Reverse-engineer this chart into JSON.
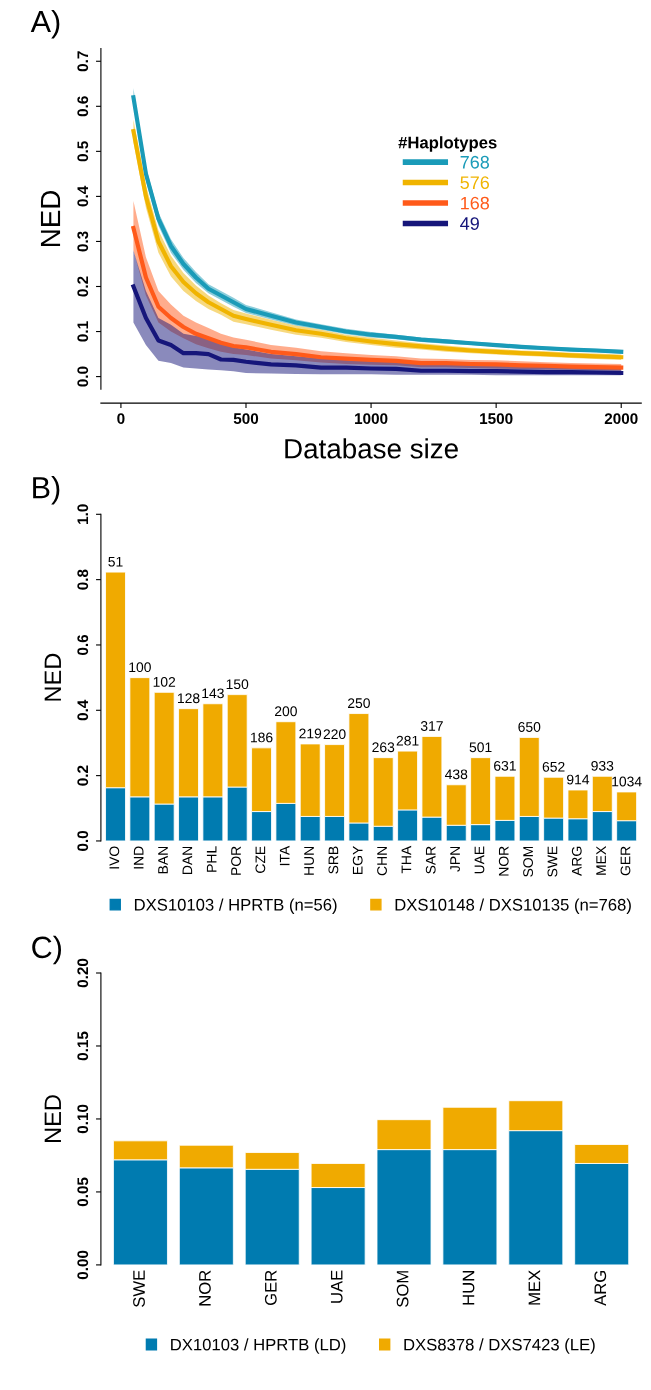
{
  "chart_data": [
    {
      "type": "line",
      "title": "A)",
      "xlabel": "Database size",
      "ylabel": "NED",
      "legend": "center right",
      "legend_title": "#Haplotypes",
      "x": [
        50,
        100,
        150,
        200,
        250,
        300,
        350,
        400,
        450,
        500,
        600,
        700,
        800,
        900,
        1000,
        1100,
        1200,
        1300,
        1400,
        1500,
        1600,
        1700,
        1800,
        1900,
        2000
      ],
      "xlim": [
        -80,
        2080
      ],
      "xticks": [
        0,
        500,
        1000,
        1500,
        2000
      ],
      "ylim": [
        -0.028,
        0.728
      ],
      "yticks": [
        {
          "value": 0,
          "label": "0.0"
        },
        0.1,
        0.2,
        0.3,
        0.4,
        0.5,
        0.6,
        0.7
      ],
      "series": [
        {
          "name": "768",
          "color": "#1a9bb8",
          "values": [
            0.62,
            0.45,
            0.35,
            0.29,
            0.25,
            0.22,
            0.195,
            0.18,
            0.165,
            0.15,
            0.135,
            0.12,
            0.11,
            0.1,
            0.093,
            0.088,
            0.082,
            0.078,
            0.074,
            0.07,
            0.066,
            0.063,
            0.06,
            0.058,
            0.055
          ],
          "lower": [
            0.6,
            0.435,
            0.335,
            0.275,
            0.237,
            0.208,
            0.185,
            0.17,
            0.155,
            0.141,
            0.127,
            0.113,
            0.104,
            0.094,
            0.087,
            0.083,
            0.077,
            0.073,
            0.07,
            0.066,
            0.062,
            0.059,
            0.056,
            0.054,
            0.051
          ],
          "upper": [
            0.64,
            0.465,
            0.365,
            0.305,
            0.263,
            0.232,
            0.205,
            0.19,
            0.175,
            0.159,
            0.143,
            0.127,
            0.116,
            0.106,
            0.099,
            0.093,
            0.087,
            0.083,
            0.078,
            0.074,
            0.07,
            0.067,
            0.064,
            0.062,
            0.059
          ]
        },
        {
          "name": "576",
          "color": "#f0b400",
          "values": [
            0.545,
            0.4,
            0.3,
            0.245,
            0.21,
            0.185,
            0.165,
            0.15,
            0.135,
            0.128,
            0.115,
            0.103,
            0.095,
            0.085,
            0.078,
            0.072,
            0.067,
            0.062,
            0.058,
            0.055,
            0.052,
            0.05,
            0.047,
            0.045,
            0.043
          ],
          "lower": [
            0.52,
            0.375,
            0.275,
            0.222,
            0.19,
            0.168,
            0.15,
            0.137,
            0.122,
            0.116,
            0.104,
            0.093,
            0.086,
            0.077,
            0.07,
            0.064,
            0.06,
            0.055,
            0.052,
            0.049,
            0.046,
            0.044,
            0.041,
            0.039,
            0.037
          ],
          "upper": [
            0.57,
            0.425,
            0.325,
            0.268,
            0.23,
            0.202,
            0.18,
            0.163,
            0.148,
            0.14,
            0.126,
            0.113,
            0.104,
            0.093,
            0.086,
            0.08,
            0.074,
            0.069,
            0.064,
            0.061,
            0.058,
            0.056,
            0.053,
            0.051,
            0.049
          ]
        },
        {
          "name": "168",
          "color": "#ff5a1a",
          "values": [
            0.33,
            0.22,
            0.155,
            0.13,
            0.11,
            0.095,
            0.085,
            0.075,
            0.068,
            0.065,
            0.055,
            0.05,
            0.043,
            0.04,
            0.037,
            0.035,
            0.03,
            0.03,
            0.028,
            0.027,
            0.025,
            0.024,
            0.022,
            0.021,
            0.02
          ],
          "lower": [
            0.28,
            0.18,
            0.12,
            0.1,
            0.085,
            0.072,
            0.063,
            0.055,
            0.05,
            0.048,
            0.04,
            0.036,
            0.031,
            0.028,
            0.026,
            0.025,
            0.021,
            0.021,
            0.019,
            0.018,
            0.017,
            0.016,
            0.015,
            0.014,
            0.013
          ],
          "upper": [
            0.39,
            0.265,
            0.19,
            0.16,
            0.135,
            0.12,
            0.108,
            0.095,
            0.087,
            0.082,
            0.07,
            0.064,
            0.056,
            0.052,
            0.048,
            0.045,
            0.04,
            0.039,
            0.037,
            0.036,
            0.034,
            0.032,
            0.03,
            0.029,
            0.028
          ]
        },
        {
          "name": "49",
          "color": "#16167a",
          "values": [
            0.2,
            0.13,
            0.08,
            0.07,
            0.052,
            0.052,
            0.05,
            0.038,
            0.037,
            0.033,
            0.027,
            0.025,
            0.02,
            0.02,
            0.018,
            0.017,
            0.013,
            0.013,
            0.012,
            0.012,
            0.011,
            0.01,
            0.01,
            0.009,
            0.008
          ],
          "lower": [
            0.12,
            0.07,
            0.035,
            0.03,
            0.02,
            0.018,
            0.016,
            0.014,
            0.012,
            0.008,
            0.007,
            0.006,
            0.005,
            0.005,
            0.005,
            0.004,
            0.004,
            0.004,
            0.004,
            0.003,
            0.003,
            0.003,
            0.003,
            0.003,
            0.003
          ],
          "upper": [
            0.28,
            0.19,
            0.13,
            0.115,
            0.095,
            0.09,
            0.088,
            0.075,
            0.065,
            0.06,
            0.05,
            0.045,
            0.04,
            0.037,
            0.035,
            0.032,
            0.03,
            0.028,
            0.027,
            0.026,
            0.025,
            0.024,
            0.023,
            0.022,
            0.021
          ]
        }
      ]
    },
    {
      "type": "bar",
      "stacked": true,
      "title": "B)",
      "ylabel": "NED",
      "legend": "bottom",
      "categories": [
        "IVO",
        "IND",
        "BAN",
        "DAN",
        "PHL",
        "POR",
        "CZE",
        "ITA",
        "HUN",
        "SRB",
        "EGY",
        "CHN",
        "THA",
        "SAR",
        "JPN",
        "UAE",
        "NOR",
        "SOM",
        "SWE",
        "ARG",
        "MEX",
        "GER"
      ],
      "ylim": [
        0,
        1.0
      ],
      "yticks": [
        {
          "value": 0,
          "label": "0.0"
        },
        0.2,
        0.4,
        0.6,
        0.8,
        {
          "value": 1,
          "label": "1.0"
        }
      ],
      "series": [
        {
          "name": "DXS10103 / HPRTB (n=56)",
          "color": "#007bb0",
          "values": [
            0.163,
            0.135,
            0.113,
            0.135,
            0.135,
            0.165,
            0.09,
            0.115,
            0.075,
            0.075,
            0.055,
            0.045,
            0.095,
            0.073,
            0.048,
            0.05,
            0.063,
            0.075,
            0.07,
            0.068,
            0.09,
            0.062
          ]
        },
        {
          "name": "DXS10148 / DXS10135 (n=768)",
          "color": "#f0aa00",
          "values": [
            0.66,
            0.365,
            0.342,
            0.27,
            0.285,
            0.283,
            0.195,
            0.25,
            0.222,
            0.22,
            0.335,
            0.21,
            0.18,
            0.247,
            0.124,
            0.205,
            0.135,
            0.242,
            0.125,
            0.088,
            0.108,
            0.088
          ]
        }
      ],
      "annotations": [
        {
          "text": "51",
          "x": "IVO",
          "y": 0.823
        },
        {
          "text": "100",
          "x": "IND",
          "y": 0.5
        },
        {
          "text": "102",
          "x": "BAN",
          "y": 0.455
        },
        {
          "text": "128",
          "x": "DAN",
          "y": 0.405
        },
        {
          "text": "143",
          "x": "PHL",
          "y": 0.42
        },
        {
          "text": "150",
          "x": "POR",
          "y": 0.448
        },
        {
          "text": "186",
          "x": "CZE",
          "y": 0.285
        },
        {
          "text": "200",
          "x": "ITA",
          "y": 0.365
        },
        {
          "text": "219",
          "x": "HUN",
          "y": 0.297
        },
        {
          "text": "220",
          "x": "SRB",
          "y": 0.295
        },
        {
          "text": "250",
          "x": "EGY",
          "y": 0.39
        },
        {
          "text": "263",
          "x": "CHN",
          "y": 0.255
        },
        {
          "text": "281",
          "x": "THA",
          "y": 0.275
        },
        {
          "text": "317",
          "x": "SAR",
          "y": 0.32
        },
        {
          "text": "438",
          "x": "JPN",
          "y": 0.172
        },
        {
          "text": "501",
          "x": "UAE",
          "y": 0.255
        },
        {
          "text": "631",
          "x": "NOR",
          "y": 0.198
        },
        {
          "text": "650",
          "x": "SOM",
          "y": 0.317
        },
        {
          "text": "652",
          "x": "SWE",
          "y": 0.195
        },
        {
          "text": "914",
          "x": "ARG",
          "y": 0.156
        },
        {
          "text": "933",
          "x": "MEX",
          "y": 0.198
        },
        {
          "text": "1034",
          "x": "GER",
          "y": 0.15
        }
      ]
    },
    {
      "type": "bar",
      "stacked": true,
      "title": "C)",
      "ylabel": "NED",
      "legend": "bottom",
      "categories": [
        "SWE",
        "NOR",
        "GER",
        "UAE",
        "SOM",
        "HUN",
        "MEX",
        "ARG"
      ],
      "ylim": [
        0,
        0.2
      ],
      "yticks": [
        {
          "value": 0,
          "label": "0.00"
        },
        0.05,
        {
          "value": 0.1,
          "label": "0.10"
        },
        0.15,
        {
          "value": 0.2,
          "label": "0.20"
        }
      ],
      "series": [
        {
          "name": "DX10103 / HPRTB (LD)",
          "color": "#007bb0",
          "values": [
            0.072,
            0.0665,
            0.0655,
            0.053,
            0.079,
            0.079,
            0.092,
            0.0695
          ]
        },
        {
          "name": "DXS8378 / DXS7423 (LE)",
          "color": "#f0aa00",
          "values": [
            0.013,
            0.0155,
            0.0115,
            0.0165,
            0.0205,
            0.029,
            0.0205,
            0.013
          ]
        }
      ]
    }
  ]
}
